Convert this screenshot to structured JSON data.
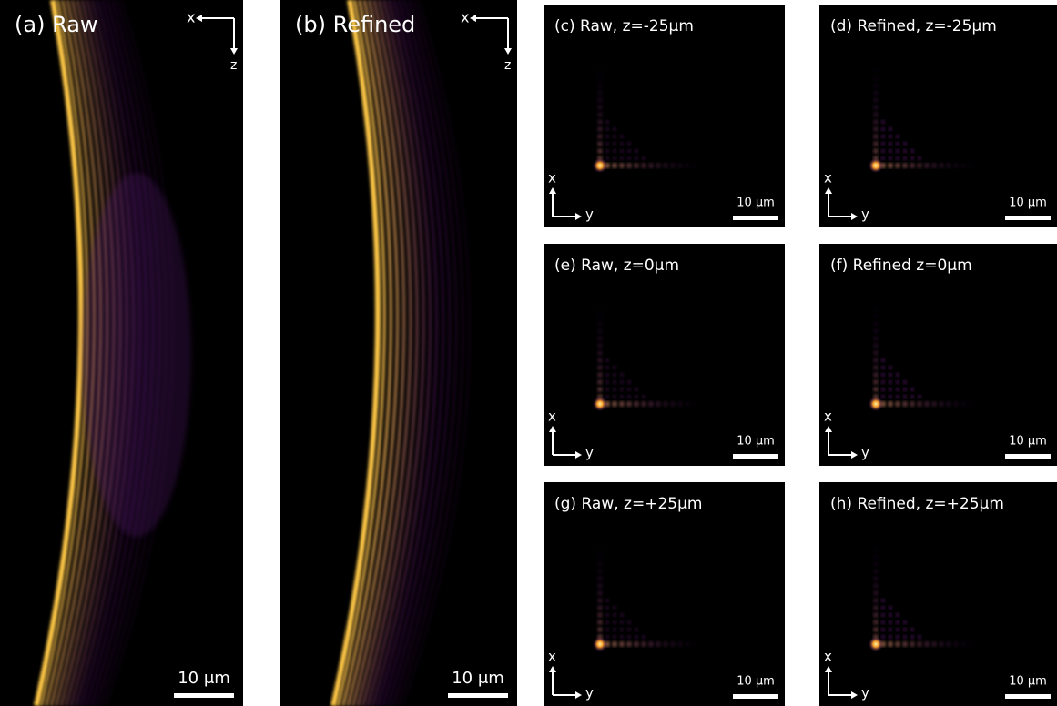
{
  "panels": [
    {
      "label": "(a) Raw",
      "axes": [
        "x",
        "z"
      ],
      "scale_bar": "10 μm"
    },
    {
      "label": "(b) Refined",
      "axes": [
        "x",
        "z"
      ],
      "scale_bar": "10 μm"
    },
    {
      "label": "(c) Raw, z=-25μm",
      "axes": [
        "x",
        "y"
      ],
      "scale_bar": "10 μm"
    },
    {
      "label": "(d) Refined, z=-25μm",
      "axes": [
        "x",
        "y"
      ],
      "scale_bar": "10 μm"
    },
    {
      "label": "(e) Raw, z=0μm",
      "axes": [
        "x",
        "y"
      ],
      "scale_bar": "10 μm"
    },
    {
      "label": "(f) Refined z=0μm",
      "axes": [
        "x",
        "y"
      ],
      "scale_bar": "10 μm"
    },
    {
      "label": "(g) Raw, z=+25μm",
      "axes": [
        "x",
        "y"
      ],
      "scale_bar": "10 μm"
    },
    {
      "label": "(h) Refined, z=+25μm",
      "axes": [
        "x",
        "y"
      ],
      "scale_bar": "10 μm"
    }
  ]
}
